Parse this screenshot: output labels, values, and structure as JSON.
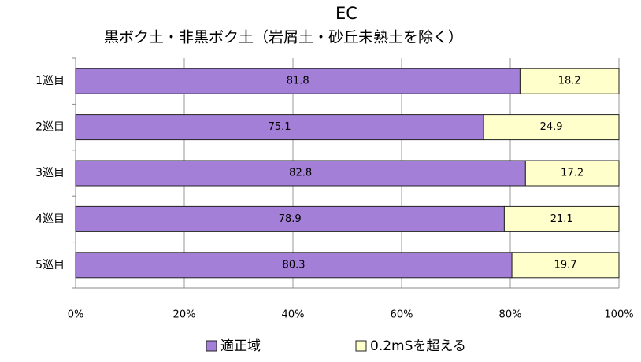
{
  "chart_data": {
    "type": "bar",
    "orientation": "horizontal",
    "stacked": true,
    "title": "EC",
    "subtitle": "黒ボク土・非黒ボク土（岩屑土・砂丘未熟土を除く）",
    "categories": [
      "1巡目",
      "2巡目",
      "3巡目",
      "4巡目",
      "5巡目"
    ],
    "series": [
      {
        "name": "適正域",
        "color": "#a47fd8",
        "values": [
          81.8,
          75.1,
          82.8,
          78.9,
          80.3
        ]
      },
      {
        "name": "0.2mSを超える",
        "color": "#ffffcc",
        "values": [
          18.2,
          24.9,
          17.2,
          21.1,
          19.7
        ]
      }
    ],
    "xlim": [
      0,
      100
    ],
    "xticks": [
      {
        "value": 0,
        "label": "0%"
      },
      {
        "value": 20,
        "label": "20%"
      },
      {
        "value": 40,
        "label": "40%"
      },
      {
        "value": 60,
        "label": "60%"
      },
      {
        "value": 80,
        "label": "80%"
      },
      {
        "value": 100,
        "label": "100%"
      }
    ],
    "grid": true,
    "legend": "bottom"
  }
}
